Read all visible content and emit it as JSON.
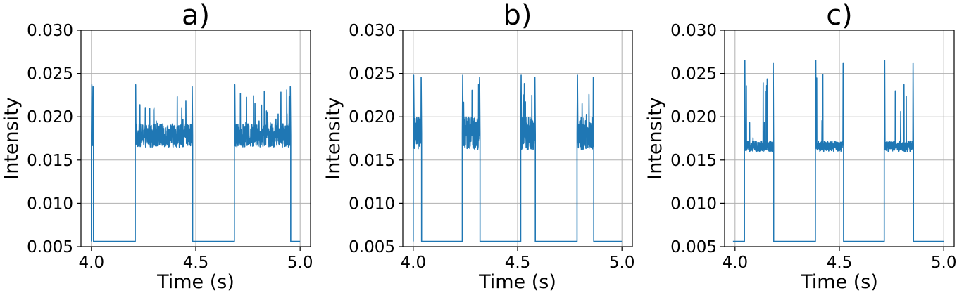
{
  "chart_data": [
    {
      "type": "line",
      "title": "a)",
      "xlabel": "Time (s)",
      "ylabel": "Intensity",
      "xlim": [
        3.95,
        5.05
      ],
      "ylim": [
        0.005,
        0.03
      ],
      "xticks": [
        4.0,
        4.5,
        5.0
      ],
      "xtick_labels": [
        "4.0",
        "4.5",
        "5.0"
      ],
      "yticks": [
        0.005,
        0.01,
        0.015,
        0.02,
        0.025,
        0.03
      ],
      "ytick_labels": [
        "0.005",
        "0.010",
        "0.015",
        "0.020",
        "0.025",
        "0.030"
      ],
      "grid": true,
      "color": "#1f77b4",
      "series": [
        {
          "on_level": [
            0.0165,
            0.0192
          ],
          "off_level": 0.0056,
          "spike": 0.0237,
          "pulses": [
            [
              4.0,
              4.01
            ],
            [
              4.21,
              4.485
            ],
            [
              4.685,
              4.955
            ]
          ],
          "x": [
            4.0,
            4.0,
            4.005,
            4.01,
            4.01,
            4.21,
            4.21,
            4.215,
            4.3,
            4.4,
            4.475,
            4.485,
            4.485,
            4.685,
            4.685,
            4.69,
            4.8,
            4.95,
            4.955,
            4.955,
            5.0
          ],
          "y": [
            0.0056,
            0.019,
            0.0237,
            0.0175,
            0.0056,
            0.0056,
            0.02,
            0.0238,
            0.0185,
            0.019,
            0.0236,
            0.0175,
            0.0056,
            0.0056,
            0.02,
            0.0237,
            0.0185,
            0.0235,
            0.0175,
            0.0056,
            0.0056
          ]
        }
      ]
    },
    {
      "type": "line",
      "title": "b)",
      "xlabel": "Time (s)",
      "ylabel": "Intensity",
      "xlim": [
        3.95,
        5.05
      ],
      "ylim": [
        0.005,
        0.03
      ],
      "xticks": [
        4.0,
        4.5,
        5.0
      ],
      "xtick_labels": [
        "4.0",
        "4.5",
        "5.0"
      ],
      "yticks": [
        0.005,
        0.01,
        0.015,
        0.02,
        0.025,
        0.03
      ],
      "ytick_labels": [
        "0.005",
        "0.010",
        "0.015",
        "0.020",
        "0.025",
        "0.030"
      ],
      "grid": true,
      "color": "#1f77b4",
      "series": [
        {
          "on_level": [
            0.0162,
            0.02
          ],
          "off_level": 0.0056,
          "spike": 0.0248,
          "pulses": [
            [
              4.0,
              4.04
            ],
            [
              4.235,
              4.32
            ],
            [
              4.515,
              4.585
            ],
            [
              4.785,
              4.865
            ]
          ],
          "x": [
            4.0,
            4.0,
            4.005,
            4.04,
            4.04,
            4.235,
            4.235,
            4.25,
            4.32,
            4.32,
            4.515,
            4.515,
            4.52,
            4.585,
            4.585,
            4.785,
            4.785,
            4.8,
            4.865,
            4.865,
            5.0
          ],
          "y": [
            0.0056,
            0.02,
            0.0242,
            0.0238,
            0.0056,
            0.0056,
            0.022,
            0.0248,
            0.0238,
            0.0056,
            0.0056,
            0.022,
            0.0245,
            0.0238,
            0.0056,
            0.0056,
            0.022,
            0.0245,
            0.0238,
            0.0056,
            0.0056
          ]
        }
      ]
    },
    {
      "type": "line",
      "title": "c)",
      "xlabel": "Time (s)",
      "ylabel": "Intensity",
      "xlim": [
        3.95,
        5.05
      ],
      "ylim": [
        0.005,
        0.03
      ],
      "xticks": [
        4.0,
        4.5,
        5.0
      ],
      "xtick_labels": [
        "4.0",
        "4.5",
        "5.0"
      ],
      "yticks": [
        0.005,
        0.01,
        0.015,
        0.02,
        0.025,
        0.03
      ],
      "ytick_labels": [
        "0.005",
        "0.010",
        "0.015",
        "0.020",
        "0.025",
        "0.030"
      ],
      "grid": true,
      "color": "#1f77b4",
      "series": [
        {
          "on_level": [
            0.016,
            0.0172
          ],
          "off_level": 0.0056,
          "spike": 0.0265,
          "pulses": [
            [
              4.045,
              4.185
            ],
            [
              4.385,
              4.52
            ],
            [
              4.715,
              4.855
            ]
          ],
          "x": [
            3.99,
            4.045,
            4.045,
            4.05,
            4.06,
            4.185,
            4.185,
            4.385,
            4.385,
            4.39,
            4.4,
            4.52,
            4.52,
            4.715,
            4.715,
            4.72,
            4.73,
            4.855,
            4.855,
            5.0
          ],
          "y": [
            0.0055,
            0.0055,
            0.0165,
            0.0265,
            0.017,
            0.0165,
            0.0055,
            0.0055,
            0.0165,
            0.0266,
            0.0172,
            0.0165,
            0.0055,
            0.0055,
            0.0165,
            0.0265,
            0.0172,
            0.0165,
            0.0055,
            0.0055
          ]
        }
      ]
    }
  ]
}
